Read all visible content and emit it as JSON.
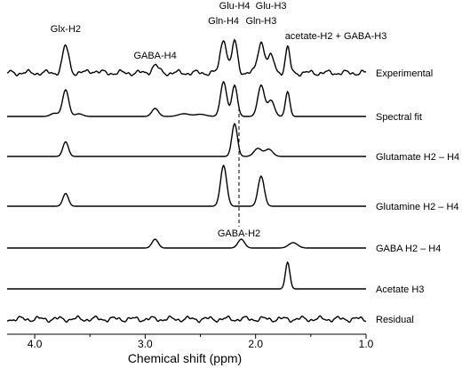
{
  "chart_data": {
    "type": "line",
    "xlabel": "Chemical shift (ppm)",
    "ylabel": "",
    "xlim": [
      4.25,
      1.0
    ],
    "x_reversed": true,
    "xticks": [
      "4.0",
      "3.0",
      "2.0",
      "1.0"
    ],
    "xtick_values": [
      4.0,
      3.0,
      2.0,
      1.0
    ],
    "grid": false,
    "line_color": "#000000",
    "reference_line": {
      "x": 2.15,
      "label": "GABA-H2"
    },
    "series": [
      {
        "name": "Experimental",
        "noise": 0.5,
        "peaks": [
          {
            "x": 3.72,
            "h": 1.0,
            "w": 0.028
          },
          {
            "x": 3.47,
            "h": 0.08,
            "w": 0.04
          },
          {
            "x": 2.91,
            "h": 0.28,
            "w": 0.03
          },
          {
            "x": 2.29,
            "h": 1.3,
            "w": 0.028
          },
          {
            "x": 2.19,
            "h": 1.17,
            "w": 0.025
          },
          {
            "x": 1.95,
            "h": 1.17,
            "w": 0.03
          },
          {
            "x": 1.86,
            "h": 0.6,
            "w": 0.03
          },
          {
            "x": 1.71,
            "h": 0.93,
            "w": 0.02
          }
        ]
      },
      {
        "name": "Spectral fit",
        "noise": 0,
        "peaks": [
          {
            "x": 3.82,
            "h": 0.12,
            "w": 0.035
          },
          {
            "x": 3.72,
            "h": 1.0,
            "w": 0.028
          },
          {
            "x": 3.6,
            "h": 0.1,
            "w": 0.035
          },
          {
            "x": 2.91,
            "h": 0.3,
            "w": 0.03
          },
          {
            "x": 2.65,
            "h": 0.1,
            "w": 0.05
          },
          {
            "x": 2.5,
            "h": 0.08,
            "w": 0.05
          },
          {
            "x": 2.29,
            "h": 1.3,
            "w": 0.028
          },
          {
            "x": 2.19,
            "h": 1.17,
            "w": 0.025
          },
          {
            "x": 1.95,
            "h": 1.17,
            "w": 0.03
          },
          {
            "x": 1.86,
            "h": 0.6,
            "w": 0.03
          },
          {
            "x": 1.71,
            "h": 0.93,
            "w": 0.02
          }
        ]
      },
      {
        "name": "Glutamate H2 – H4",
        "noise": 0,
        "peaks": [
          {
            "x": 3.72,
            "h": 0.55,
            "w": 0.025
          },
          {
            "x": 2.19,
            "h": 1.23,
            "w": 0.025
          },
          {
            "x": 1.98,
            "h": 0.3,
            "w": 0.035
          },
          {
            "x": 1.88,
            "h": 0.27,
            "w": 0.035
          }
        ]
      },
      {
        "name": "Glutamine H2 – H4",
        "noise": 0,
        "peaks": [
          {
            "x": 3.72,
            "h": 0.48,
            "w": 0.025
          },
          {
            "x": 2.29,
            "h": 1.53,
            "w": 0.028
          },
          {
            "x": 1.95,
            "h": 1.13,
            "w": 0.028
          }
        ]
      },
      {
        "name": "GABA H2 – H4",
        "noise": 0,
        "peaks": [
          {
            "x": 2.91,
            "h": 0.33,
            "w": 0.028
          },
          {
            "x": 2.13,
            "h": 0.33,
            "w": 0.03
          },
          {
            "x": 1.66,
            "h": 0.2,
            "w": 0.04
          }
        ]
      },
      {
        "name": "Acetate H3",
        "noise": 0,
        "peaks": [
          {
            "x": 1.71,
            "h": 1.0,
            "w": 0.02
          }
        ]
      },
      {
        "name": "Residual",
        "noise": 0.5,
        "peaks": []
      }
    ],
    "annotations": [
      {
        "text": "Glx-H2",
        "x": 3.72
      },
      {
        "text": "GABA-H4",
        "x": 2.91
      },
      {
        "text": "Gln-H4",
        "x": 2.29
      },
      {
        "text": "Glu-H4",
        "x": 2.19
      },
      {
        "text": "Gln-H3",
        "x": 1.95
      },
      {
        "text": "Glu-H3",
        "x": 1.86
      },
      {
        "text": "acetate-H2 + GABA-H3",
        "x": 1.71
      }
    ]
  }
}
